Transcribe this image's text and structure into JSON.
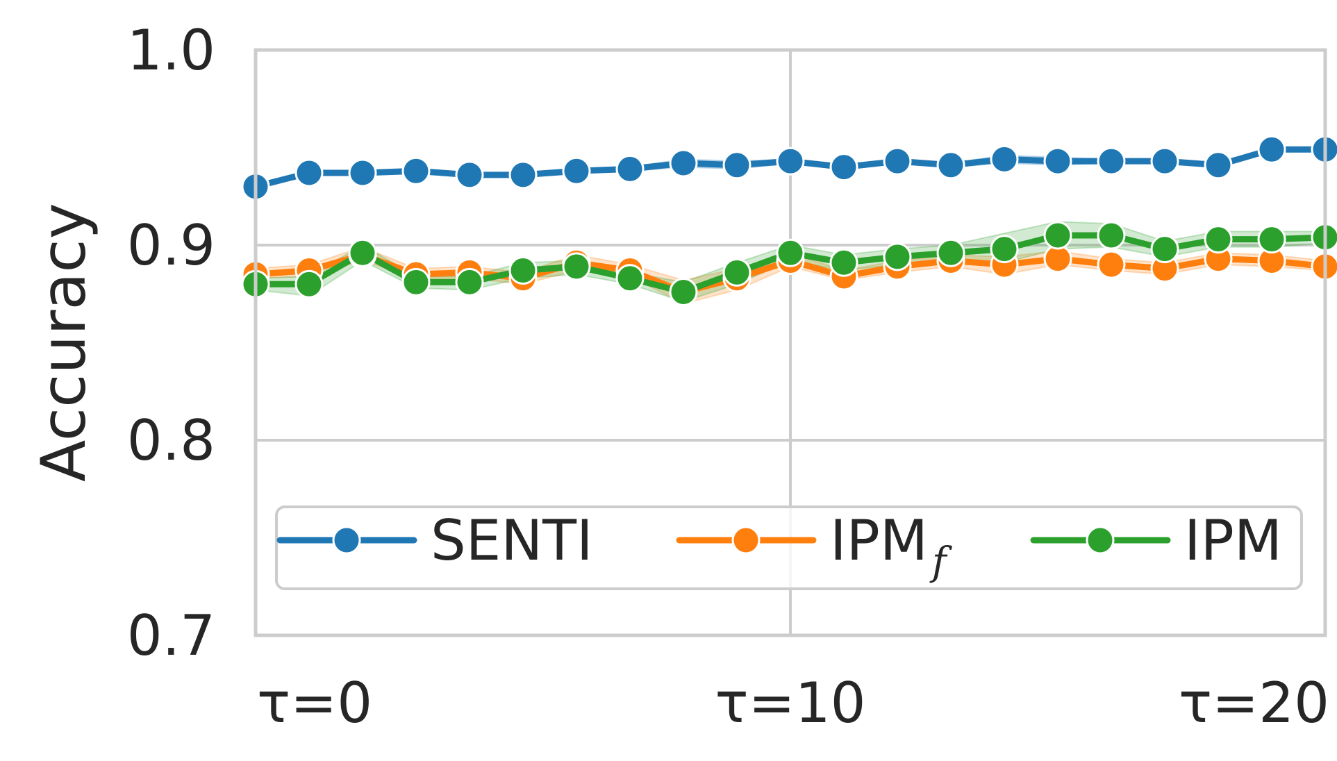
{
  "chart_data": {
    "type": "line",
    "title": "",
    "xlabel": "",
    "ylabel": "Accuracy",
    "x": [
      0,
      1,
      2,
      3,
      4,
      5,
      6,
      7,
      8,
      9,
      10,
      11,
      12,
      13,
      14,
      15,
      16,
      17,
      18,
      19,
      20
    ],
    "xlim": [
      0,
      20
    ],
    "xticks": [
      0,
      10,
      20
    ],
    "xtick_labels": [
      "τ=0",
      "τ=10",
      "τ=20"
    ],
    "ylim": [
      0.7,
      1.0
    ],
    "yticks": [
      0.7,
      0.8,
      0.9,
      1.0
    ],
    "ytick_labels": [
      "0.7",
      "0.8",
      "0.9",
      "1.0"
    ],
    "grid": true,
    "legend": {
      "placement": "lower-center",
      "columns": 3
    },
    "series": [
      {
        "name": "SENTI",
        "color": "#1f77b4",
        "values": [
          0.93,
          0.937,
          0.937,
          0.938,
          0.936,
          0.936,
          0.938,
          0.939,
          0.942,
          0.941,
          0.943,
          0.94,
          0.943,
          0.941,
          0.944,
          0.943,
          0.943,
          0.943,
          0.941,
          0.949,
          0.949
        ],
        "band_low": [
          0.929,
          0.936,
          0.936,
          0.937,
          0.935,
          0.935,
          0.937,
          0.938,
          0.94,
          0.939,
          0.942,
          0.939,
          0.942,
          0.94,
          0.942,
          0.941,
          0.942,
          0.942,
          0.94,
          0.948,
          0.948
        ],
        "band_high": [
          0.931,
          0.938,
          0.938,
          0.939,
          0.937,
          0.937,
          0.939,
          0.94,
          0.944,
          0.943,
          0.944,
          0.941,
          0.944,
          0.942,
          0.946,
          0.945,
          0.944,
          0.944,
          0.942,
          0.95,
          0.95
        ]
      },
      {
        "name": "IPM",
        "name_sub": "f",
        "color": "#ff7f0e",
        "values": [
          0.885,
          0.887,
          0.895,
          0.885,
          0.886,
          0.883,
          0.891,
          0.887,
          0.876,
          0.883,
          0.892,
          0.884,
          0.889,
          0.892,
          0.89,
          0.893,
          0.89,
          0.888,
          0.893,
          0.892,
          0.889
        ],
        "band_low": [
          0.883,
          0.884,
          0.892,
          0.883,
          0.883,
          0.88,
          0.887,
          0.884,
          0.87,
          0.877,
          0.889,
          0.882,
          0.886,
          0.889,
          0.885,
          0.89,
          0.887,
          0.885,
          0.89,
          0.889,
          0.887
        ],
        "band_high": [
          0.888,
          0.89,
          0.899,
          0.888,
          0.889,
          0.886,
          0.895,
          0.89,
          0.882,
          0.888,
          0.896,
          0.887,
          0.892,
          0.895,
          0.894,
          0.897,
          0.893,
          0.891,
          0.896,
          0.895,
          0.892
        ]
      },
      {
        "name": "IPM",
        "color": "#2ca02c",
        "values": [
          0.88,
          0.88,
          0.896,
          0.881,
          0.881,
          0.887,
          0.889,
          0.883,
          0.876,
          0.886,
          0.896,
          0.891,
          0.894,
          0.896,
          0.898,
          0.905,
          0.905,
          0.898,
          0.903,
          0.903,
          0.904
        ],
        "band_low": [
          0.877,
          0.874,
          0.892,
          0.878,
          0.877,
          0.883,
          0.885,
          0.88,
          0.871,
          0.88,
          0.892,
          0.887,
          0.89,
          0.892,
          0.891,
          0.898,
          0.899,
          0.894,
          0.899,
          0.899,
          0.901
        ],
        "band_high": [
          0.883,
          0.884,
          0.9,
          0.884,
          0.884,
          0.891,
          0.892,
          0.886,
          0.881,
          0.891,
          0.9,
          0.895,
          0.898,
          0.9,
          0.906,
          0.912,
          0.911,
          0.902,
          0.907,
          0.907,
          0.907
        ]
      }
    ]
  }
}
